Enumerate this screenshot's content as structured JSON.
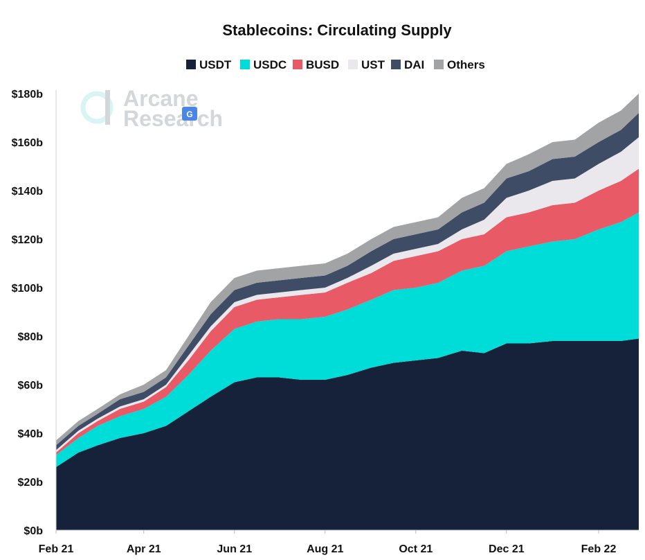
{
  "chart_data": {
    "type": "area",
    "stacked": true,
    "title": "Stablecoins: Circulating Supply",
    "xlabel": "",
    "ylabel": "",
    "legend_position": "top-center",
    "grid": false,
    "x": [
      "2021-02-01",
      "2021-02-16",
      "2021-03-01",
      "2021-03-16",
      "2021-04-01",
      "2021-04-16",
      "2021-05-01",
      "2021-05-16",
      "2021-06-01",
      "2021-06-16",
      "2021-07-01",
      "2021-07-16",
      "2021-08-01",
      "2021-08-16",
      "2021-09-01",
      "2021-09-16",
      "2021-10-01",
      "2021-10-16",
      "2021-11-01",
      "2021-11-16",
      "2021-12-01",
      "2021-12-16",
      "2022-01-01",
      "2022-01-16",
      "2022-02-01",
      "2022-02-16",
      "2022-02-28"
    ],
    "x_ticks": [
      "Feb 21",
      "Apr 21",
      "Jun 21",
      "Aug 21",
      "Oct 21",
      "Dec 21",
      "Feb 22"
    ],
    "y_ticks": [
      "$0b",
      "$20b",
      "$40b",
      "$60b",
      "$80b",
      "$100b",
      "$120b",
      "$140b",
      "$160b",
      "$180b"
    ],
    "ylim": [
      0,
      180
    ],
    "series": [
      {
        "name": "USDT",
        "color": "#16213a",
        "values": [
          26,
          32,
          35,
          38,
          40,
          43,
          49,
          55,
          61,
          63,
          63,
          62,
          62,
          64,
          67,
          69,
          70,
          71,
          74,
          73,
          77,
          77,
          78,
          78,
          78,
          78,
          79
        ]
      },
      {
        "name": "USDC",
        "color": "#00dcd8",
        "values": [
          5,
          6,
          8,
          9,
          10,
          12,
          15,
          19,
          22,
          23,
          24,
          25,
          26,
          27,
          28,
          30,
          30,
          31,
          33,
          36,
          38,
          40,
          41,
          42,
          46,
          49,
          52
        ]
      },
      {
        "name": "BUSD",
        "color": "#e85a65",
        "values": [
          1,
          2,
          2,
          3,
          3,
          4,
          6,
          8,
          9,
          9,
          9,
          10,
          10,
          11,
          11,
          12,
          13,
          13,
          13,
          13,
          14,
          14,
          15,
          15,
          16,
          17,
          18
        ]
      },
      {
        "name": "UST",
        "color": "#eae8ec",
        "values": [
          1,
          1,
          1,
          1,
          1,
          1,
          2,
          2,
          2,
          2,
          2,
          2,
          2,
          2,
          3,
          3,
          3,
          3,
          4,
          6,
          8,
          9,
          10,
          10,
          11,
          12,
          13
        ]
      },
      {
        "name": "DAI",
        "color": "#3f4c66",
        "values": [
          2,
          2,
          2,
          3,
          3,
          3,
          4,
          5,
          5,
          5,
          5,
          5,
          5,
          5,
          6,
          6,
          6,
          6,
          7,
          7,
          8,
          8,
          9,
          9,
          9,
          9,
          10
        ]
      },
      {
        "name": "Others",
        "color": "#a2a3a5",
        "values": [
          2,
          2,
          2,
          2,
          3,
          3,
          4,
          5,
          5,
          5,
          5,
          5,
          5,
          5,
          5,
          5,
          5,
          5,
          6,
          6,
          6,
          7,
          7,
          7,
          8,
          8,
          8
        ]
      }
    ]
  },
  "watermark": {
    "line1": "Arcane",
    "line2": "Research"
  }
}
